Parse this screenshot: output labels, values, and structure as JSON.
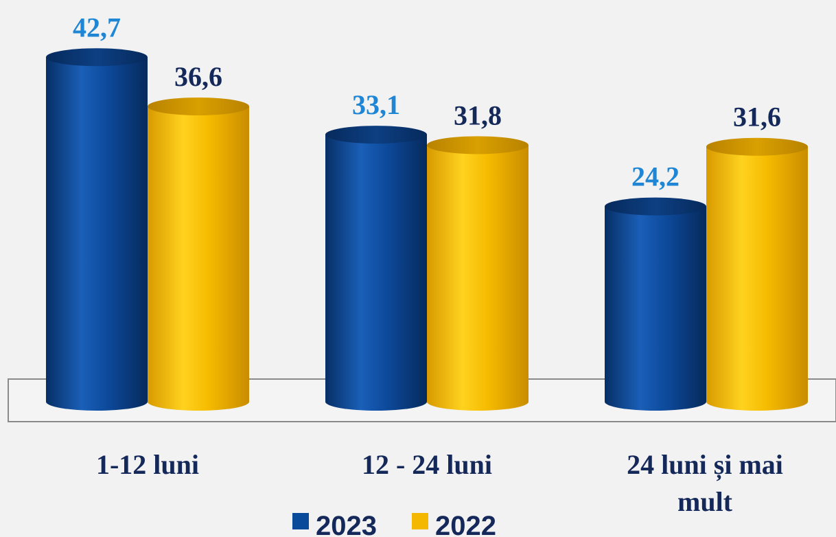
{
  "chart_data": {
    "type": "bar",
    "categories": [
      "1-12 luni",
      "12 - 24 luni",
      "24 luni și mai mult"
    ],
    "series": [
      {
        "name": "2023",
        "values": [
          42.7,
          33.1,
          24.2
        ],
        "labels": [
          "42,7",
          "33,1",
          "24,2"
        ]
      },
      {
        "name": "2022",
        "values": [
          36.6,
          31.8,
          31.6
        ],
        "labels": [
          "36,6",
          "31,8",
          "31,6"
        ]
      }
    ],
    "legend": {
      "placement": "bottom-center"
    },
    "grid": false,
    "colors": {
      "series_2023": "#0a4a9a",
      "series_2023_label": "#1e86d4",
      "series_2022": "#f5b800",
      "series_2022_label": "#14285a",
      "category_text": "#14285a",
      "legend_text": "#14285a"
    }
  }
}
